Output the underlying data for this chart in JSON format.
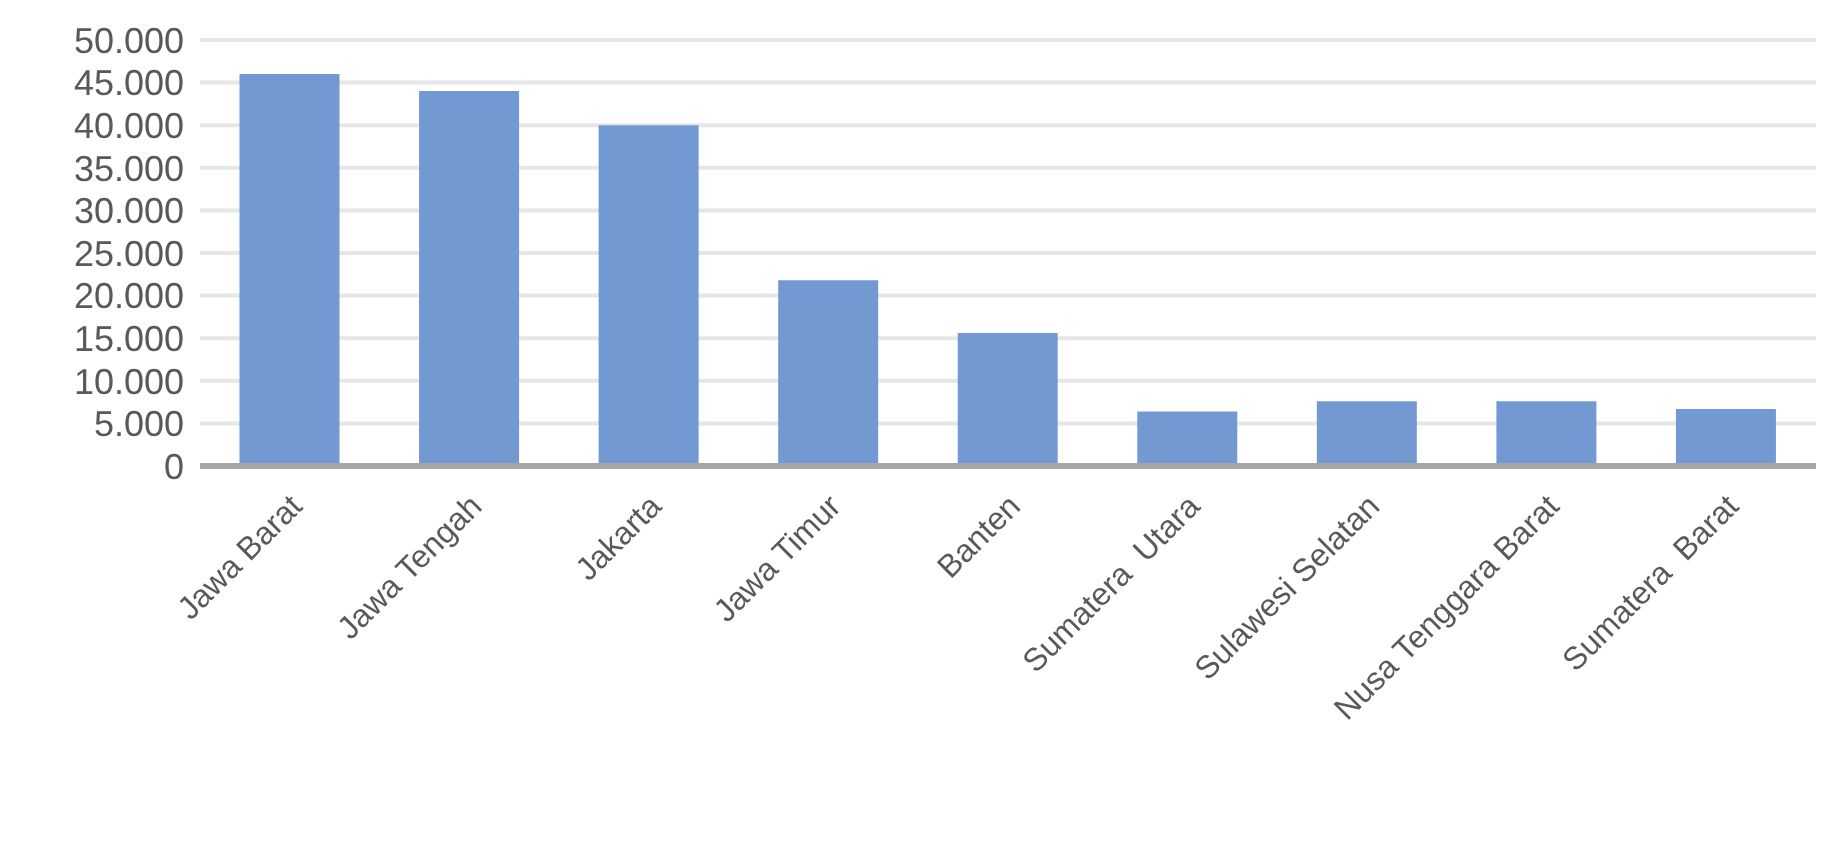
{
  "chart_data": {
    "type": "bar",
    "categories": [
      "Jawa Barat",
      "Jawa Tengah",
      "Jakarta",
      "Jawa Timur",
      "Banten",
      "Sumatera  Utara",
      "Sulawesi Selatan",
      "Nusa Tenggara Barat",
      "Sumatera  Barat"
    ],
    "values": [
      46000,
      44000,
      40000,
      21800,
      15600,
      6400,
      7600,
      7600,
      6700
    ],
    "color": "#7399d3",
    "ylim": [
      0,
      50000
    ],
    "yticks": [
      {
        "value": 0,
        "label": "0"
      },
      {
        "value": 5000,
        "label": "5.000"
      },
      {
        "value": 10000,
        "label": "10.000"
      },
      {
        "value": 15000,
        "label": "15.000"
      },
      {
        "value": 20000,
        "label": "20.000"
      },
      {
        "value": 25000,
        "label": "25.000"
      },
      {
        "value": 30000,
        "label": "30.000"
      },
      {
        "value": 35000,
        "label": "35.000"
      },
      {
        "value": 40000,
        "label": "40.000"
      },
      {
        "value": 45000,
        "label": "45.000"
      },
      {
        "value": 50000,
        "label": "50.000"
      }
    ],
    "grid": "y"
  }
}
